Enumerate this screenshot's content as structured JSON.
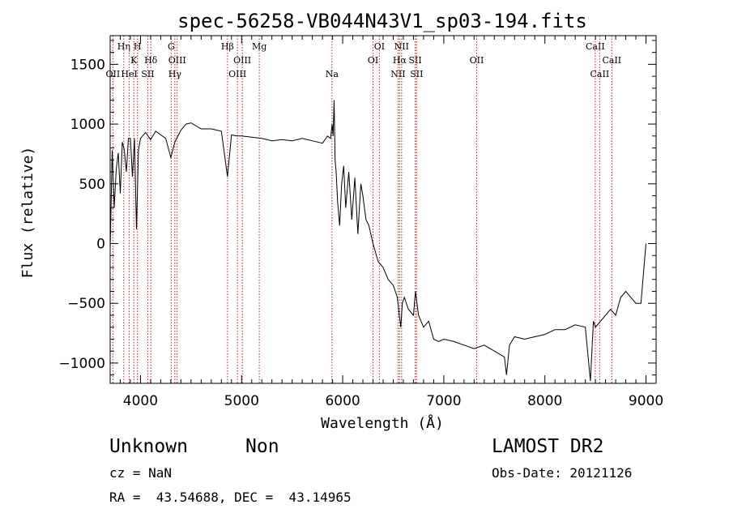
{
  "chart_data": {
    "type": "line",
    "title": "spec-56258-VB044N43V1_sp03-194.fits",
    "xlabel": "Wavelength (Å)",
    "ylabel": "Flux (relative)",
    "xlim": [
      3700,
      9100
    ],
    "ylim": [
      -1170,
      1740
    ],
    "xticks": [
      4000,
      5000,
      6000,
      7000,
      8000,
      9000
    ],
    "yticks": [
      -1000,
      -500,
      0,
      500,
      1000,
      1500
    ],
    "grid": false,
    "line_color": "#000000",
    "marker_color": "#b22222",
    "spectrum": {
      "x": [
        3700,
        3720,
        3740,
        3760,
        3780,
        3800,
        3820,
        3840,
        3860,
        3880,
        3900,
        3920,
        3940,
        3960,
        3980,
        4000,
        4050,
        4100,
        4150,
        4200,
        4250,
        4300,
        4340,
        4400,
        4450,
        4500,
        4600,
        4700,
        4800,
        4860,
        4900,
        4950,
        5000,
        5100,
        5200,
        5300,
        5400,
        5500,
        5600,
        5700,
        5800,
        5850,
        5880,
        5895,
        5905,
        5915,
        5925,
        5935,
        5950,
        5970,
        5990,
        6010,
        6030,
        6060,
        6090,
        6120,
        6150,
        6180,
        6200,
        6230,
        6260,
        6300,
        6350,
        6400,
        6450,
        6500,
        6540,
        6560,
        6575,
        6590,
        6610,
        6650,
        6700,
        6720,
        6750,
        6800,
        6850,
        6900,
        6950,
        7000,
        7100,
        7200,
        7300,
        7400,
        7500,
        7600,
        7620,
        7650,
        7700,
        7800,
        7900,
        8000,
        8100,
        8200,
        8300,
        8400,
        8450,
        8480,
        8500,
        8550,
        8600,
        8650,
        8700,
        8750,
        8800,
        8850,
        8900,
        8950,
        9000
      ],
      "y": [
        -60,
        780,
        300,
        620,
        760,
        420,
        850,
        780,
        600,
        880,
        880,
        560,
        880,
        120,
        780,
        880,
        930,
        870,
        940,
        910,
        880,
        720,
        850,
        950,
        1000,
        1010,
        960,
        960,
        940,
        560,
        910,
        900,
        900,
        890,
        880,
        860,
        870,
        860,
        880,
        860,
        840,
        900,
        880,
        1000,
        900,
        1200,
        700,
        600,
        350,
        150,
        500,
        650,
        300,
        600,
        200,
        550,
        80,
        500,
        400,
        200,
        150,
        0,
        -150,
        -200,
        -300,
        -350,
        -450,
        -600,
        -700,
        -500,
        -450,
        -550,
        -600,
        -400,
        -600,
        -700,
        -650,
        -800,
        -820,
        -800,
        -820,
        -850,
        -880,
        -850,
        -900,
        -950,
        -1100,
        -850,
        -780,
        -800,
        -780,
        -760,
        -720,
        -720,
        -680,
        -700,
        -1150,
        -650,
        -700,
        -650,
        -600,
        -550,
        -600,
        -450,
        -400,
        -450,
        -500,
        -500,
        0
      ]
    },
    "line_markers": [
      {
        "wavelength": 3727,
        "label": "OII",
        "row": 3
      },
      {
        "wavelength": 3835,
        "label": "Hη",
        "row": 1
      },
      {
        "wavelength": 3889,
        "label": "HeI",
        "row": 3
      },
      {
        "wavelength": 3934,
        "label": "K",
        "row": 2
      },
      {
        "wavelength": 3970,
        "label": "H",
        "row": 1
      },
      {
        "wavelength": 4072,
        "label": "SII",
        "row": 3
      },
      {
        "wavelength": 4102,
        "label": "Hδ",
        "row": 2
      },
      {
        "wavelength": 4304,
        "label": "G",
        "row": 1
      },
      {
        "wavelength": 4340,
        "label": "Hγ",
        "row": 3
      },
      {
        "wavelength": 4363,
        "label": "OIII",
        "row": 2
      },
      {
        "wavelength": 4861,
        "label": "Hβ",
        "row": 1
      },
      {
        "wavelength": 4959,
        "label": "OIII",
        "row": 3
      },
      {
        "wavelength": 5007,
        "label": "OIII",
        "row": 2
      },
      {
        "wavelength": 5175,
        "label": "Mg",
        "row": 1
      },
      {
        "wavelength": 5894,
        "label": "Na",
        "row": 3
      },
      {
        "wavelength": 6300,
        "label": "OI",
        "row": 2
      },
      {
        "wavelength": 6363,
        "label": "OI",
        "row": 1
      },
      {
        "wavelength": 6548,
        "label": "NII",
        "row": 3
      },
      {
        "wavelength": 6563,
        "label": "Hα",
        "row": 2
      },
      {
        "wavelength": 6583,
        "label": "NII",
        "row": 1
      },
      {
        "wavelength": 6717,
        "label": "SII",
        "row": 2
      },
      {
        "wavelength": 6731,
        "label": "SII",
        "row": 3
      },
      {
        "wavelength": 7325,
        "label": "OII",
        "row": 2
      },
      {
        "wavelength": 8498,
        "label": "CaII",
        "row": 1
      },
      {
        "wavelength": 8542,
        "label": "CaII",
        "row": 3
      },
      {
        "wavelength": 8662,
        "label": "CaII",
        "row": 2
      }
    ]
  },
  "info": {
    "object_class": "Unknown",
    "object_subclass": "Non",
    "redshift": "cz = NaN",
    "coords": "RA =  43.54688, DEC =  43.14965",
    "survey": "LAMOST DR2",
    "obs_date": "Obs-Date: 20121126"
  }
}
